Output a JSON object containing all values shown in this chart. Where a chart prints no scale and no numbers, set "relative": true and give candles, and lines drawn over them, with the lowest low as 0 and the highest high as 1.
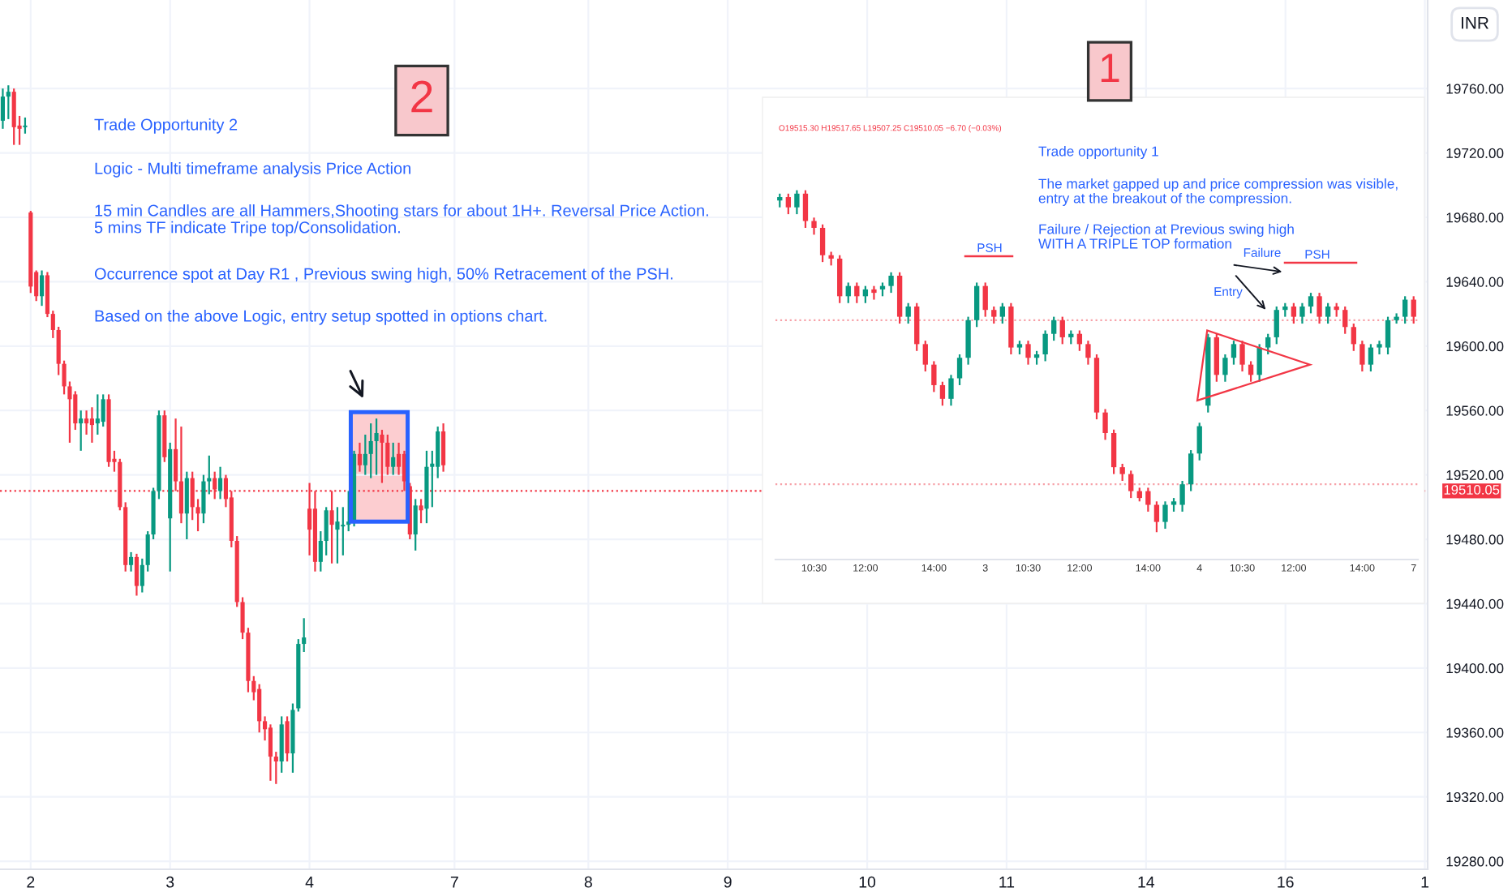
{
  "chart_data": [
    {
      "type": "candlestick",
      "categories": [
        null,
        null,
        null,
        null,
        null,
        "2",
        null,
        null,
        null,
        null,
        null,
        null,
        null,
        null,
        null,
        null,
        null,
        null,
        null,
        null,
        null,
        null,
        null,
        null,
        null,
        null,
        null,
        null,
        null,
        null,
        "3",
        null,
        null,
        null,
        null,
        null,
        null,
        null,
        null,
        null,
        null,
        null,
        null,
        null,
        null,
        null,
        null,
        null,
        null,
        null,
        null,
        null,
        null,
        null,
        null,
        "4",
        null,
        null,
        null,
        null,
        null,
        null,
        null,
        null,
        null,
        null,
        null,
        null,
        null,
        null,
        null,
        null,
        null,
        null,
        null,
        null,
        null,
        null,
        null,
        null,
        null,
        "7",
        null,
        null,
        null,
        null,
        null,
        null,
        null,
        null,
        null,
        null,
        null,
        null,
        null,
        null,
        null,
        null,
        null,
        null,
        null,
        null,
        null,
        null,
        null,
        "8",
        null,
        null,
        null,
        null,
        null,
        null,
        null,
        null,
        null,
        null,
        null,
        null,
        null,
        null,
        null,
        null,
        null,
        null,
        null,
        null,
        null,
        null,
        null,
        null,
        "9",
        null,
        null,
        null,
        null,
        null,
        null,
        null,
        null,
        null,
        null,
        null,
        null,
        null,
        null,
        null,
        null,
        null,
        null,
        null,
        null,
        null,
        null,
        null,
        null,
        "10",
        null,
        null,
        null,
        null,
        null,
        null,
        null,
        null,
        null,
        null,
        null,
        null,
        null,
        null,
        null,
        null,
        null,
        null,
        null,
        null,
        null,
        null,
        null,
        null,
        "11",
        null,
        null,
        null,
        null,
        null,
        null,
        null,
        null,
        null,
        null,
        null,
        null,
        null,
        null,
        null,
        null,
        null,
        null,
        null,
        null,
        null,
        null,
        null,
        null,
        "14",
        null,
        null,
        null,
        null,
        null,
        null,
        null,
        null,
        null,
        null,
        null,
        null,
        null,
        null,
        null,
        null,
        null,
        null,
        null,
        null,
        null,
        null,
        null,
        null,
        "16",
        null,
        null,
        null,
        null,
        null,
        null,
        null,
        null,
        null,
        null,
        null,
        null,
        null,
        null,
        null,
        null,
        null,
        null,
        null,
        null,
        null,
        null,
        null,
        null,
        "1"
      ],
      "ohlc": [
        [
          19740,
          19760,
          19735,
          19755
        ],
        [
          19755,
          19762,
          19741,
          19758
        ],
        [
          19758,
          19760,
          19725,
          19736
        ],
        [
          19737,
          19743,
          19725,
          19735
        ],
        [
          19736,
          19742,
          19732,
          19737
        ],
        [
          19683,
          19684,
          19633,
          19637
        ],
        [
          19646,
          19647,
          19628,
          19631
        ],
        [
          19631,
          19647,
          19625,
          19644
        ],
        [
          19644,
          19646,
          19618,
          19620
        ],
        [
          19620,
          19622,
          19605,
          19610
        ],
        [
          19610,
          19612,
          19582,
          19589
        ],
        [
          19589,
          19591,
          19570,
          19575
        ],
        [
          19575,
          19578,
          19540,
          19567
        ],
        [
          19570,
          19572,
          19548,
          19552
        ],
        [
          19552,
          19560,
          19535,
          19555
        ],
        [
          19555,
          19560,
          19545,
          19552
        ],
        [
          19555,
          19562,
          19540,
          19551
        ],
        [
          19552,
          19570,
          19545,
          19555
        ],
        [
          19553,
          19570,
          19550,
          19567
        ],
        [
          19567,
          19570,
          19525,
          19528
        ],
        [
          19530,
          19535,
          19522,
          19528
        ],
        [
          19528,
          19530,
          19498,
          19500
        ],
        [
          19500,
          19503,
          19460,
          19464
        ],
        [
          19464,
          19472,
          19460,
          19469
        ],
        [
          19469,
          19471,
          19445,
          19451
        ],
        [
          19451,
          19468,
          19447,
          19464
        ],
        [
          19464,
          19485,
          19460,
          19483
        ],
        [
          19483,
          19512,
          19480,
          19510
        ],
        [
          19510,
          19560,
          19505,
          19557
        ],
        [
          19557,
          19560,
          19528,
          19531
        ],
        [
          19493,
          19540,
          19460,
          19536
        ],
        [
          19536,
          19555,
          19510,
          19516
        ],
        [
          19516,
          19550,
          19490,
          19496
        ],
        [
          19496,
          19522,
          19480,
          19518
        ],
        [
          19518,
          19522,
          19492,
          19500
        ],
        [
          19500,
          19505,
          19485,
          19496
        ],
        [
          19496,
          19520,
          19490,
          19516
        ],
        [
          19516,
          19532,
          19508,
          19518
        ],
        [
          19518,
          19522,
          19505,
          19511
        ],
        [
          19510,
          19525,
          19505,
          19518
        ],
        [
          19518,
          19520,
          19500,
          19505
        ],
        [
          19506,
          19510,
          19475,
          19479
        ],
        [
          19479,
          19482,
          19438,
          19441
        ],
        [
          19441,
          19444,
          19418,
          19422
        ],
        [
          19422,
          19425,
          19385,
          19392
        ],
        [
          19392,
          19395,
          19380,
          19385
        ],
        [
          19387,
          19390,
          19360,
          19367
        ],
        [
          19367,
          19370,
          19355,
          19362
        ],
        [
          19363,
          19365,
          19330,
          19345
        ],
        [
          19345,
          19348,
          19328,
          19342
        ],
        [
          19342,
          19370,
          19335,
          19365
        ],
        [
          19367,
          19370,
          19342,
          19347
        ],
        [
          19347,
          19378,
          19335,
          19374
        ],
        [
          19375,
          19418,
          19373,
          19415
        ],
        [
          19415,
          19431,
          19410,
          19419
        ],
        [
          19499,
          19515,
          19470,
          19486
        ],
        [
          19499,
          19510,
          19460,
          19466
        ],
        [
          19466,
          19485,
          19460,
          19479
        ],
        [
          19479,
          19500,
          19470,
          19498
        ],
        [
          19498,
          19510,
          19465,
          19489
        ],
        [
          19486,
          19500,
          19465,
          19491
        ],
        [
          19488,
          19500,
          19470,
          19489
        ],
        [
          19489,
          19510,
          19485,
          19491
        ],
        [
          19491,
          19535,
          19488,
          19533
        ],
        [
          19533,
          19540,
          19522,
          19526
        ],
        [
          19526,
          19545,
          19520,
          19533
        ],
        [
          19533,
          19552,
          19518,
          19541
        ],
        [
          19541,
          19555,
          19520,
          19546
        ],
        [
          19545,
          19548,
          19515,
          19540
        ],
        [
          19540,
          19545,
          19520,
          19525
        ],
        [
          19525,
          19540,
          19520,
          19531
        ],
        [
          19533,
          19540,
          19520,
          19525
        ],
        [
          19533,
          19535,
          19510,
          19516
        ],
        [
          19513,
          19515,
          19480,
          19483
        ],
        [
          19483,
          19505,
          19473,
          19501
        ],
        [
          19501,
          19505,
          19490,
          19498
        ],
        [
          19499,
          19535,
          19490,
          19525
        ],
        [
          19525,
          19535,
          19500,
          19527
        ],
        [
          19525,
          19550,
          19518,
          19547
        ],
        [
          19547,
          19552,
          19522,
          19526
        ],
        null,
        null,
        null,
        null,
        null,
        null,
        null,
        null,
        null,
        null,
        null,
        null,
        null,
        null,
        null,
        null,
        null,
        null,
        null,
        null,
        null,
        null,
        null,
        null,
        null,
        null,
        null,
        null,
        null,
        null,
        null,
        null,
        null,
        null,
        null,
        null,
        null,
        null,
        null,
        null,
        null,
        null,
        null,
        null,
        null,
        null,
        null,
        null,
        null,
        null,
        null,
        null,
        null,
        null,
        null,
        null,
        null,
        null,
        null,
        null,
        null,
        null,
        null,
        null,
        null,
        null,
        null,
        null,
        null,
        null,
        null,
        null,
        null,
        null,
        null,
        null,
        null,
        null,
        null,
        null,
        null,
        null,
        null,
        null,
        null,
        null,
        null,
        null,
        null,
        null,
        null,
        null,
        null,
        null,
        null,
        null,
        null,
        null,
        null,
        null,
        null,
        null,
        null,
        null,
        null,
        null,
        null,
        null,
        null,
        null,
        null,
        null,
        null,
        null,
        null,
        null,
        null,
        null,
        null,
        null,
        null,
        null,
        null,
        null,
        null,
        null,
        null,
        null,
        null,
        null,
        null,
        null,
        null,
        null,
        null,
        null,
        null,
        null,
        null,
        null,
        null,
        null,
        null,
        null,
        null,
        null,
        null,
        null,
        null,
        null,
        null,
        null,
        null,
        null,
        null,
        null,
        null,
        null,
        null,
        null,
        null,
        null,
        null,
        null,
        null,
        null,
        null,
        null,
        null,
        null,
        null,
        null,
        null,
        null,
        null,
        null
      ],
      "ylim": [
        19275,
        19815
      ],
      "yticks": [
        {
          "value": 19280,
          "label": "19280.00"
        },
        {
          "value": 19320,
          "label": "19320.00"
        },
        {
          "value": 19360,
          "label": "19360.00"
        },
        {
          "value": 19400,
          "label": "19400.00"
        },
        {
          "value": 19440,
          "label": "19440.00"
        },
        {
          "value": 19480,
          "label": "19480.00"
        },
        {
          "value": 19520,
          "label": "19520.00"
        },
        {
          "value": 19560,
          "label": "19560.00"
        },
        {
          "value": 19600,
          "label": "19600.00"
        },
        {
          "value": 19640,
          "label": "19640.00"
        },
        {
          "value": 19680,
          "label": "19680.00"
        },
        {
          "value": 19720,
          "label": "19720.00"
        },
        {
          "value": 19760,
          "label": "19760.00"
        }
      ],
      "grid": true,
      "ref_lines": [
        {
          "axis": "y",
          "value": 19510.05,
          "label": "19510.05",
          "color": "#f23645",
          "line_style": "dotted"
        }
      ],
      "annotations": [
        "Trade Opportunity 2",
        "Logic - Multi timeframe analysis Price Action",
        "15 min Candles are all Hammers,Shooting stars for about 1H+. Reversal Price Action.\n5 mins TF indicate Tripe top/Consolidation.",
        "Occurrence spot at Day R1 , Previous swing high, 50% Retracement of the PSH.",
        "Based on the above Logic, entry setup spotted in options chart.",
        "2",
        "INR"
      ]
    },
    {
      "type": "candlestick",
      "relative": true,
      "categories": [
        null,
        null,
        null,
        null,
        "10:30",
        null,
        null,
        null,
        null,
        null,
        "12:00",
        null,
        null,
        null,
        null,
        null,
        null,
        null,
        "14:00",
        null,
        null,
        null,
        null,
        null,
        "3",
        null,
        null,
        null,
        null,
        "10:30",
        null,
        null,
        null,
        null,
        null,
        "12:00",
        null,
        null,
        null,
        null,
        null,
        null,
        null,
        "14:00",
        null,
        null,
        null,
        null,
        null,
        "4",
        null,
        null,
        null,
        null,
        "10:30",
        null,
        null,
        null,
        null,
        null,
        "12:00",
        null,
        null,
        null,
        null,
        null,
        null,
        null,
        "14:00",
        null,
        null,
        null,
        null,
        null,
        "7"
      ],
      "ohlc": [
        [
          0.97,
          0.99,
          0.95,
          0.98
        ],
        [
          0.98,
          0.99,
          0.93,
          0.95
        ],
        [
          0.95,
          1.0,
          0.93,
          0.99
        ],
        [
          0.99,
          1.0,
          0.89,
          0.91
        ],
        [
          0.91,
          0.92,
          0.87,
          0.89
        ],
        [
          0.89,
          0.9,
          0.79,
          0.81
        ],
        [
          0.81,
          0.82,
          0.78,
          0.8
        ],
        [
          0.8,
          0.81,
          0.67,
          0.69
        ],
        [
          0.69,
          0.73,
          0.67,
          0.72
        ],
        [
          0.72,
          0.73,
          0.67,
          0.69
        ],
        [
          0.69,
          0.72,
          0.67,
          0.71
        ],
        [
          0.71,
          0.72,
          0.68,
          0.7
        ],
        [
          0.71,
          0.73,
          0.69,
          0.72
        ],
        [
          0.72,
          0.76,
          0.7,
          0.75
        ],
        [
          0.75,
          0.76,
          0.61,
          0.63
        ],
        [
          0.63,
          0.67,
          0.61,
          0.66
        ],
        [
          0.66,
          0.67,
          0.53,
          0.55
        ],
        [
          0.55,
          0.56,
          0.47,
          0.49
        ],
        [
          0.49,
          0.5,
          0.41,
          0.43
        ],
        [
          0.43,
          0.44,
          0.37,
          0.39
        ],
        [
          0.39,
          0.46,
          0.37,
          0.45
        ],
        [
          0.45,
          0.52,
          0.43,
          0.51
        ],
        [
          0.51,
          0.63,
          0.49,
          0.62
        ],
        [
          0.62,
          0.73,
          0.6,
          0.72
        ],
        [
          0.72,
          0.73,
          0.63,
          0.65
        ],
        [
          0.65,
          0.66,
          0.61,
          0.63
        ],
        [
          0.63,
          0.67,
          0.61,
          0.66
        ],
        [
          0.66,
          0.67,
          0.52,
          0.54
        ],
        [
          0.54,
          0.56,
          0.52,
          0.55
        ],
        [
          0.55,
          0.56,
          0.49,
          0.51
        ],
        [
          0.51,
          0.53,
          0.49,
          0.52
        ],
        [
          0.52,
          0.59,
          0.5,
          0.58
        ],
        [
          0.58,
          0.63,
          0.56,
          0.62
        ],
        [
          0.62,
          0.63,
          0.55,
          0.57
        ],
        [
          0.57,
          0.59,
          0.55,
          0.58
        ],
        [
          0.58,
          0.59,
          0.53,
          0.55
        ],
        [
          0.55,
          0.56,
          0.49,
          0.51
        ],
        [
          0.51,
          0.52,
          0.33,
          0.35
        ],
        [
          0.35,
          0.36,
          0.27,
          0.29
        ],
        [
          0.29,
          0.3,
          0.17,
          0.19
        ],
        [
          0.19,
          0.2,
          0.15,
          0.17
        ],
        [
          0.17,
          0.18,
          0.1,
          0.12
        ],
        [
          0.12,
          0.13,
          0.09,
          0.1
        ],
        [
          0.12,
          0.13,
          0.06,
          0.08
        ],
        [
          0.08,
          0.09,
          0.0,
          0.03
        ],
        [
          0.03,
          0.09,
          0.01,
          0.08
        ],
        [
          0.08,
          0.1,
          0.06,
          0.09
        ],
        [
          0.08,
          0.15,
          0.06,
          0.14
        ],
        [
          0.14,
          0.24,
          0.12,
          0.23
        ],
        [
          0.23,
          0.32,
          0.21,
          0.31
        ],
        [
          0.37,
          0.58,
          0.35,
          0.57
        ],
        [
          0.57,
          0.58,
          0.44,
          0.46
        ],
        [
          0.46,
          0.52,
          0.44,
          0.51
        ],
        [
          0.51,
          0.56,
          0.49,
          0.55
        ],
        [
          0.55,
          0.56,
          0.47,
          0.49
        ],
        [
          0.49,
          0.5,
          0.44,
          0.46
        ],
        [
          0.46,
          0.55,
          0.44,
          0.54
        ],
        [
          0.54,
          0.58,
          0.52,
          0.57
        ],
        [
          0.57,
          0.66,
          0.55,
          0.65
        ],
        [
          0.65,
          0.67,
          0.63,
          0.66
        ],
        [
          0.66,
          0.67,
          0.61,
          0.63
        ],
        [
          0.63,
          0.67,
          0.61,
          0.66
        ],
        [
          0.66,
          0.7,
          0.64,
          0.69
        ],
        [
          0.69,
          0.7,
          0.61,
          0.63
        ],
        [
          0.63,
          0.67,
          0.61,
          0.66
        ],
        [
          0.66,
          0.67,
          0.63,
          0.65
        ],
        [
          0.65,
          0.66,
          0.58,
          0.6
        ],
        [
          0.6,
          0.61,
          0.53,
          0.55
        ],
        [
          0.55,
          0.56,
          0.47,
          0.49
        ],
        [
          0.49,
          0.55,
          0.47,
          0.54
        ],
        [
          0.54,
          0.56,
          0.52,
          0.55
        ],
        [
          0.54,
          0.63,
          0.52,
          0.62
        ],
        [
          0.62,
          0.64,
          0.61,
          0.63
        ],
        [
          0.63,
          0.69,
          0.61,
          0.68
        ],
        [
          0.68,
          0.69,
          0.61,
          0.63
        ]
      ],
      "tick_labels": "x",
      "ref_lines": [
        {
          "axis": "y",
          "value": 0.14,
          "color": "#f7a1a8",
          "line_style": "dotted"
        },
        {
          "axis": "y",
          "value": 0.62,
          "color": "#f7a1a8",
          "line_style": "dotted"
        }
      ],
      "annotations": [
        "O19515.30 H19517.65 L19507.25 C19510.05 −6.70 (−0.03%)",
        "Trade opportunity 1",
        "The market gapped up and price compression was visible,\nentry at the breakout of the compression.",
        "Failure / Rejection at Previous swing high\nWITH A TRIPLE TOP formation",
        "1",
        "PSH",
        "PSH",
        "Entry",
        "Failure"
      ]
    }
  ]
}
